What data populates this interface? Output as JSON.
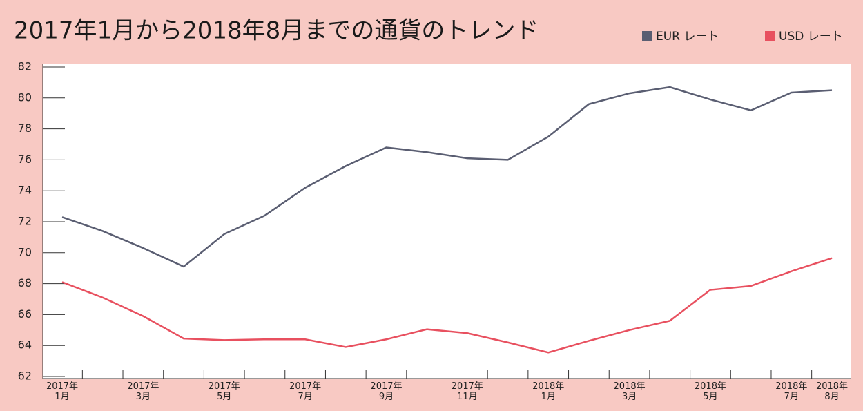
{
  "chart_data": {
    "type": "line",
    "title": "2017年1月から2018年8月までの通貨のトレンド",
    "categories": [
      "2017年\n1月",
      null,
      "2017年\n3月",
      null,
      "2017年\n5月",
      null,
      "2017年\n7月",
      null,
      "2017年\n9月",
      null,
      "2017年\n11月",
      null,
      "2018年\n1月",
      null,
      "2018年\n3月",
      null,
      "2018年\n5月",
      null,
      "2018年\n7月",
      "2018年\n8月"
    ],
    "series": [
      {
        "name": "EUR レート",
        "color": "#5a5e72",
        "values": [
          72.3,
          71.4,
          70.3,
          69.1,
          71.2,
          72.4,
          74.2,
          75.6,
          76.8,
          76.5,
          76.1,
          76.0,
          77.5,
          79.6,
          80.3,
          80.7,
          79.9,
          79.2,
          80.35,
          80.5
        ]
      },
      {
        "name": "USD レート",
        "color": "#e8505f",
        "values": [
          68.1,
          67.1,
          65.9,
          64.45,
          64.35,
          64.4,
          64.4,
          63.9,
          64.4,
          65.05,
          64.8,
          64.2,
          63.55,
          64.3,
          65.0,
          65.6,
          67.6,
          67.85,
          68.8,
          69.65
        ]
      }
    ],
    "ylim": [
      62,
      82
    ],
    "yticks": [
      62,
      64,
      66,
      68,
      70,
      72,
      74,
      76,
      78,
      80,
      82
    ],
    "legend": "top-right"
  }
}
